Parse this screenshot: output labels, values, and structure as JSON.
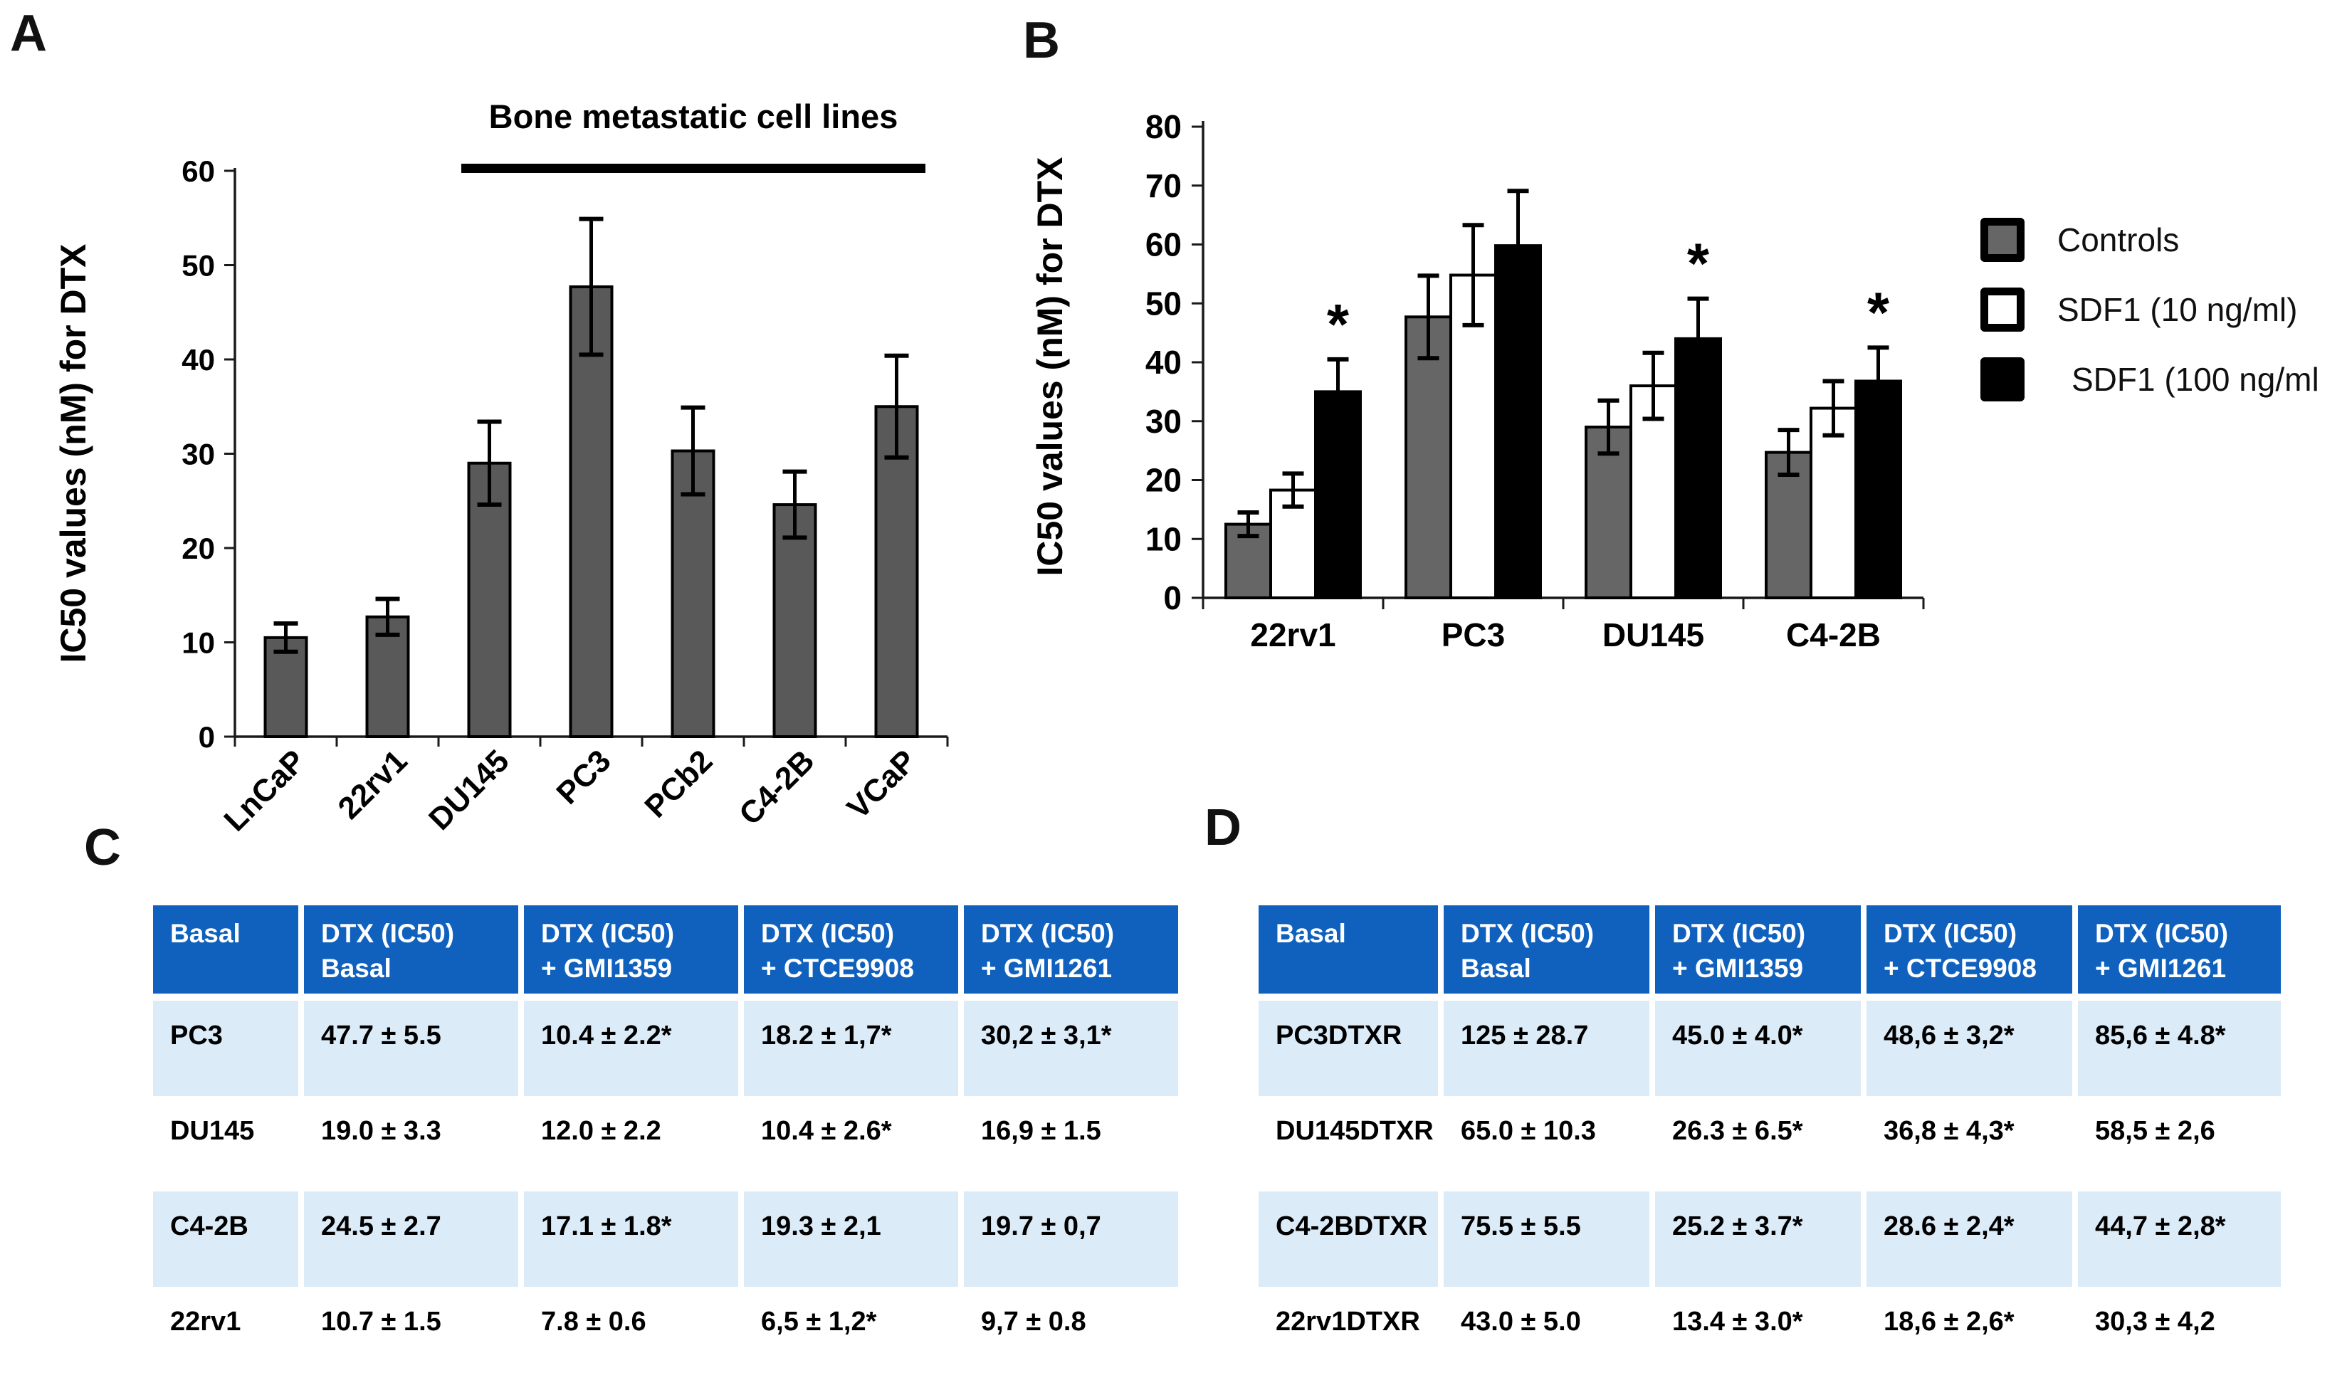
{
  "figure": {
    "panels": [
      {
        "id": "A",
        "label": "A"
      },
      {
        "id": "B",
        "label": "B"
      },
      {
        "id": "C",
        "label": "C"
      },
      {
        "id": "D",
        "label": "D"
      }
    ]
  },
  "chart_data": [
    {
      "panel": "A",
      "type": "bar",
      "annotation": {
        "text": "Bone metastatic cell lines",
        "underline_categories_from": "DU145",
        "underline_categories_to": "VCaP"
      },
      "ylabel": "IC50 values (nM) for DTX",
      "ylim": [
        0,
        60
      ],
      "yticks": [
        0,
        10,
        20,
        30,
        40,
        50,
        60
      ],
      "grid": false,
      "categories": [
        "LnCaP",
        "22rv1",
        "DU145",
        "PC3",
        "PCb2",
        "C4-2B",
        "VCaP"
      ],
      "values": [
        10.5,
        12.7,
        29.0,
        47.7,
        30.3,
        24.6,
        35.0
      ],
      "errors": [
        1.5,
        1.9,
        4.4,
        7.2,
        4.6,
        3.5,
        5.4
      ],
      "bar_color": "#595959",
      "bar_border_color": "#000000"
    },
    {
      "panel": "B",
      "type": "grouped-bar",
      "ylabel": "IC50 values (nM) for DTX",
      "ylim": [
        0,
        80
      ],
      "yticks": [
        0,
        10,
        20,
        30,
        40,
        50,
        60,
        70,
        80
      ],
      "grid": false,
      "categories": [
        "22rv1",
        "PC3",
        "DU145",
        "C4-2B"
      ],
      "series": [
        {
          "name": "Controls",
          "fill": "#666666",
          "values": [
            12.5,
            47.7,
            29.0,
            24.7
          ],
          "errors": [
            2.0,
            7.0,
            4.5,
            3.8
          ]
        },
        {
          "name": "SDF1 (10 ng/ml)",
          "fill": "#ffffff",
          "values": [
            18.3,
            54.8,
            36.0,
            32.2
          ],
          "errors": [
            2.8,
            8.5,
            5.6,
            4.6
          ]
        },
        {
          "name": "SDF1 (100 ng/ml",
          "fill": "#000000",
          "values": [
            35.0,
            59.8,
            44.0,
            36.8
          ],
          "errors": [
            5.5,
            9.3,
            6.8,
            5.7
          ]
        }
      ],
      "significance": {
        "marker": "*",
        "series": "SDF1 (100 ng/ml",
        "categories": [
          "22rv1",
          "DU145",
          "C4-2B"
        ]
      },
      "legend_position": "right"
    }
  ],
  "tables": {
    "c": {
      "panel": "C",
      "headers": [
        {
          "line1": "Basal",
          "line2": ""
        },
        {
          "line1": "DTX (IC50)",
          "line2": "Basal"
        },
        {
          "line1": "DTX (IC50)",
          "line2": "+ GMI1359"
        },
        {
          "line1": "DTX (IC50)",
          "line2": "+ CTCE9908"
        },
        {
          "line1": "DTX (IC50)",
          "line2": "+ GMI1261"
        }
      ],
      "rows": [
        {
          "banded": true,
          "cells": [
            "PC3",
            "47.7 ± 5.5",
            "10.4 ± 2.2*",
            "18.2 ± 1,7*",
            "30,2  ± 3,1*"
          ]
        },
        {
          "banded": false,
          "cells": [
            "DU145",
            "19.0 ± 3.3",
            "12.0 ± 2.2",
            "10.4 ± 2.6*",
            "16,9 ± 1.5"
          ]
        },
        {
          "banded": true,
          "cells": [
            "C4-2B",
            "24.5 ± 2.7",
            "17.1 ± 1.8*",
            "19.3 ± 2,1",
            "19.7 ± 0,7"
          ]
        },
        {
          "banded": false,
          "cells": [
            "22rv1",
            "10.7 ± 1.5",
            "7.8 ± 0.6",
            "6,5 ± 1,2*",
            "9,7 ± 0.8"
          ]
        }
      ]
    },
    "d": {
      "panel": "D",
      "headers": [
        {
          "line1": "Basal",
          "line2": ""
        },
        {
          "line1": "DTX (IC50)",
          "line2": "Basal"
        },
        {
          "line1": "DTX (IC50)",
          "line2": "+ GMI1359"
        },
        {
          "line1": "DTX (IC50)",
          "line2": "+ CTCE9908"
        },
        {
          "line1": "DTX (IC50)",
          "line2": "+ GMI1261"
        }
      ],
      "rows": [
        {
          "banded": true,
          "cells": [
            "PC3DTXR",
            "125 ± 28.7",
            "45.0 ± 4.0*",
            "48,6 ± 3,2*",
            "85,6 ± 4.8*"
          ]
        },
        {
          "banded": false,
          "cells": [
            "DU145DTXR",
            "65.0 ± 10.3",
            "26.3 ± 6.5*",
            "36,8 ± 4,3*",
            "58,5 ± 2,6"
          ]
        },
        {
          "banded": true,
          "cells": [
            "C4-2BDTXR",
            "75.5 ± 5.5",
            "25.2 ± 3.7*",
            "28.6 ± 2,4*",
            "44,7 ± 2,8*"
          ]
        },
        {
          "banded": false,
          "cells": [
            "22rv1DTXR",
            "43.0 ± 5.0",
            "13.4 ± 3.0*",
            "18,6 ± 2,6*",
            "30,3 ± 4,2"
          ]
        }
      ]
    }
  },
  "colors": {
    "axis": "#1a1a1a",
    "error_bar": "#000000",
    "panel_a_bar": "#595959",
    "panel_b_gray": "#666666",
    "panel_b_white": "#ffffff",
    "panel_b_black": "#000000",
    "table_header_bg": "#1061be",
    "table_header_text": "#ffffff",
    "table_band_bg": "#dcebf8",
    "table_text": "#000000"
  }
}
